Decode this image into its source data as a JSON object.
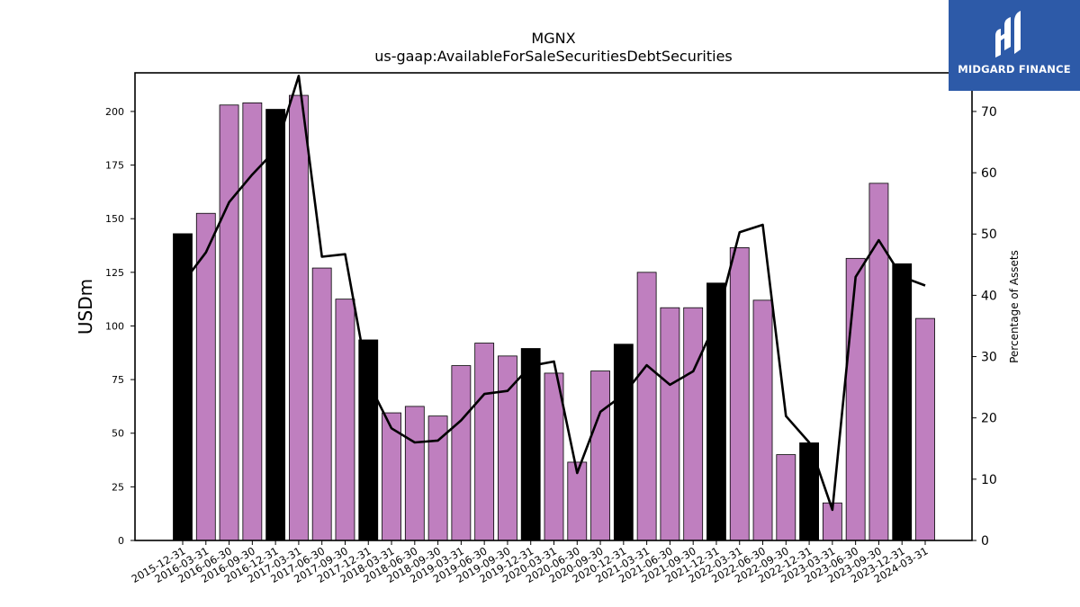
{
  "logo": {
    "text": "MIDGARD FINANCE",
    "bg": "#2d5aa8"
  },
  "chart_data": {
    "type": "bar",
    "title": "MGNX",
    "subtitle": "us-gaap:AvailableForSaleSecuritiesDebtSecurities",
    "ylabel": "USDm",
    "y2label": "Percentage of Assets",
    "ylim": [
      0,
      218
    ],
    "y2lim": [
      0,
      76.3
    ],
    "yticks": [
      0,
      25,
      50,
      75,
      100,
      125,
      150,
      175,
      200
    ],
    "y2ticks": [
      0,
      10,
      20,
      30,
      40,
      50,
      60,
      70
    ],
    "categories": [
      "2015-12-31",
      "2016-03-31",
      "2016-06-30",
      "2016-09-30",
      "2016-12-31",
      "2017-03-31",
      "2017-06-30",
      "2017-09-30",
      "2017-12-31",
      "2018-03-31",
      "2018-06-30",
      "2018-09-30",
      "2019-03-31",
      "2019-06-30",
      "2019-09-30",
      "2019-12-31",
      "2020-03-31",
      "2020-06-30",
      "2020-09-30",
      "2020-12-31",
      "2021-03-31",
      "2021-06-30",
      "2021-09-30",
      "2021-12-31",
      "2022-03-31",
      "2022-06-30",
      "2022-09-30",
      "2022-12-31",
      "2023-03-31",
      "2023-06-30",
      "2023-09-30",
      "2023-12-31",
      "2024-03-31"
    ],
    "series": [
      {
        "type": "bar",
        "values": [
          143,
          152.5,
          203,
          204,
          201,
          207.5,
          127,
          112.5,
          93.5,
          59.5,
          62.5,
          58,
          81.5,
          92,
          86,
          89.5,
          78,
          36.5,
          79,
          91.5,
          125,
          108.5,
          108.5,
          120,
          136.5,
          112,
          40,
          45.5,
          17.5,
          131.5,
          166.5,
          129,
          103.5
        ],
        "year_end": [
          true,
          false,
          false,
          false,
          true,
          false,
          false,
          false,
          true,
          false,
          false,
          false,
          false,
          false,
          false,
          true,
          false,
          false,
          false,
          true,
          false,
          false,
          false,
          true,
          false,
          false,
          false,
          true,
          false,
          false,
          false,
          true,
          false
        ],
        "color_quarter": "#bf7fbf",
        "color_year_end": "#000000"
      },
      {
        "type": "line",
        "axis": "right",
        "values": [
          42,
          47,
          55.2,
          59.7,
          63.7,
          75.8,
          46.3,
          46.7,
          25.8,
          18.3,
          16,
          16.3,
          19.6,
          23.9,
          24.4,
          28.5,
          29.2,
          11,
          21,
          23.8,
          28.6,
          25.4,
          27.6,
          35.8,
          50.3,
          51.5,
          20.3,
          16,
          5,
          43,
          49,
          43,
          41.6
        ],
        "color": "#000000"
      }
    ]
  }
}
